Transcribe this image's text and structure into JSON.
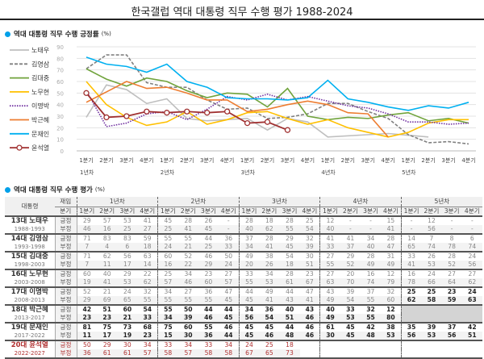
{
  "title": "한국갤럽 역대 대통령 직무 수행 평가 1988-2024",
  "chart_section": {
    "title": "역대 대통령 직무 수행 긍정률",
    "unit": "(%)"
  },
  "table_section": {
    "title": "역대 대통령 직무 수행 평가",
    "unit": "(%)"
  },
  "chart_data": {
    "type": "line",
    "ylim": [
      0,
      90
    ],
    "yticks": [
      0,
      10,
      20,
      30,
      40,
      50,
      60,
      70,
      80,
      90
    ],
    "grid": true,
    "legend": "left",
    "categories": [
      "1분기",
      "2분기",
      "3분기",
      "4분기",
      "1분기",
      "2분기",
      "3분기",
      "4분기",
      "1분기",
      "2분기",
      "3분기",
      "4분기",
      "1분기",
      "2분기",
      "3분기",
      "4분기",
      "1분기",
      "2분기",
      "3분기",
      "4분기"
    ],
    "groups": [
      "1년차",
      "2년차",
      "3년차",
      "4년차",
      "5년차"
    ],
    "series": [
      {
        "name": "노태우",
        "color": "#bfbfbf",
        "style": "solid",
        "values": [
          29,
          57,
          53,
          41,
          45,
          28,
          26,
          null,
          28,
          18,
          28,
          25,
          12,
          null,
          null,
          15,
          null,
          12,
          null,
          null
        ]
      },
      {
        "name": "김영삼",
        "color": "#808080",
        "style": "dashed",
        "values": [
          71,
          83,
          83,
          59,
          55,
          55,
          44,
          36,
          37,
          28,
          29,
          32,
          41,
          41,
          34,
          28,
          14,
          7,
          8,
          6
        ]
      },
      {
        "name": "김대중",
        "color": "#70a33c",
        "style": "solid",
        "values": [
          71,
          62,
          56,
          63,
          60,
          52,
          46,
          50,
          49,
          38,
          54,
          30,
          27,
          29,
          28,
          31,
          33,
          26,
          28,
          24
        ]
      },
      {
        "name": "노무현",
        "color": "#ffc000",
        "style": "solid",
        "values": [
          60,
          40,
          29,
          22,
          25,
          34,
          23,
          27,
          33,
          34,
          28,
          23,
          27,
          20,
          16,
          12,
          16,
          24,
          27,
          27
        ]
      },
      {
        "name": "이명박",
        "color": "#7030a0",
        "style": "dotted",
        "values": [
          52,
          21,
          24,
          32,
          34,
          27,
          36,
          47,
          44,
          49,
          44,
          47,
          43,
          39,
          37,
          32,
          25,
          25,
          23,
          24
        ]
      },
      {
        "name": "박근혜",
        "color": "#ed7d31",
        "style": "solid",
        "values": [
          42,
          51,
          60,
          54,
          55,
          50,
          44,
          44,
          34,
          36,
          40,
          43,
          40,
          33,
          32,
          12,
          null,
          null,
          null,
          null
        ]
      },
      {
        "name": "문재인",
        "color": "#00b0f0",
        "style": "solid",
        "values": [
          81,
          75,
          73,
          68,
          75,
          60,
          55,
          46,
          45,
          45,
          44,
          46,
          61,
          45,
          42,
          38,
          35,
          39,
          37,
          42
        ]
      },
      {
        "name": "윤석열",
        "color": "#a03030",
        "style": "marker",
        "values": [
          50,
          29,
          30,
          34,
          33,
          34,
          33,
          34,
          24,
          25,
          18,
          null,
          null,
          null,
          null,
          null,
          null,
          null,
          null,
          null
        ]
      }
    ]
  },
  "table": {
    "head_president": "대통령",
    "head_term": "재임",
    "head_quarter": "분기",
    "years": [
      "1년차",
      "2년차",
      "3년차",
      "4년차",
      "5년차"
    ],
    "quarters": [
      "1분기",
      "2분기",
      "3분기",
      "4분기"
    ],
    "label_pos": "긍정",
    "label_neg": "부정",
    "rows": [
      {
        "name": "13대 노태우",
        "years": "1988-1993",
        "pos": [
          "29",
          "57",
          "53",
          "41",
          "45",
          "28",
          "26",
          "-",
          "28",
          "18",
          "28",
          "25",
          "12",
          "-",
          "-",
          "15",
          "-",
          "12",
          "-",
          "-"
        ],
        "neg": [
          "46",
          "16",
          "25",
          "27",
          "25",
          "41",
          "45",
          "-",
          "40",
          "62",
          "55",
          "54",
          "40",
          "-",
          "-",
          "41",
          "-",
          "56",
          "-",
          "-"
        ]
      },
      {
        "name": "14대 김영삼",
        "years": "1993-1998",
        "pos": [
          "71",
          "83",
          "83",
          "59",
          "55",
          "55",
          "44",
          "36",
          "37",
          "28",
          "29",
          "32",
          "41",
          "41",
          "34",
          "28",
          "14",
          "7",
          "8",
          "6"
        ],
        "neg": [
          "7",
          "4",
          "6",
          "18",
          "24",
          "21",
          "25",
          "33",
          "34",
          "41",
          "45",
          "39",
          "33",
          "37",
          "40",
          "47",
          "65",
          "74",
          "78",
          "74"
        ]
      },
      {
        "name": "15대 김대중",
        "years": "1998-2003",
        "pos": [
          "71",
          "62",
          "56",
          "63",
          "60",
          "52",
          "46",
          "50",
          "49",
          "38",
          "54",
          "30",
          "27",
          "29",
          "28",
          "31",
          "33",
          "26",
          "28",
          "24"
        ],
        "neg": [
          "7",
          "11",
          "17",
          "14",
          "16",
          "22",
          "29",
          "24",
          "20",
          "26",
          "18",
          "51",
          "55",
          "52",
          "49",
          "49",
          "41",
          "53",
          "52",
          "56"
        ]
      },
      {
        "name": "16대 노무현",
        "years": "2003-2008",
        "pos": [
          "60",
          "40",
          "29",
          "22",
          "25",
          "34",
          "23",
          "27",
          "33",
          "34",
          "28",
          "23",
          "27",
          "20",
          "16",
          "12",
          "16",
          "24",
          "27",
          "27"
        ],
        "neg": [
          "19",
          "41",
          "53",
          "62",
          "57",
          "46",
          "60",
          "57",
          "55",
          "53",
          "61",
          "67",
          "63",
          "70",
          "74",
          "79",
          "78",
          "66",
          "64",
          "62"
        ]
      },
      {
        "name": "17대 이명박",
        "years": "2008-2013",
        "pos": [
          "52",
          "21",
          "24",
          "32",
          "34",
          "27",
          "36",
          "47",
          "44",
          "49",
          "44",
          "47",
          "43",
          "39",
          "37",
          "32",
          "25",
          "25",
          "23",
          "24"
        ],
        "neg": [
          "29",
          "69",
          "65",
          "55",
          "55",
          "55",
          "55",
          "45",
          "45",
          "41",
          "43",
          "41",
          "49",
          "54",
          "55",
          "60",
          "62",
          "58",
          "59",
          "63"
        ]
      },
      {
        "name": "18대 박근혜",
        "years": "2013-2017",
        "pos": [
          "42",
          "51",
          "60",
          "54",
          "55",
          "50",
          "44",
          "44",
          "34",
          "36",
          "40",
          "43",
          "40",
          "33",
          "32",
          "12",
          "",
          "",
          "",
          ""
        ],
        "neg": [
          "23",
          "23",
          "21",
          "33",
          "34",
          "39",
          "46",
          "45",
          "56",
          "54",
          "51",
          "46",
          "49",
          "53",
          "55",
          "80",
          "",
          "",
          "",
          ""
        ]
      },
      {
        "name": "19대 문재인",
        "years": "2017-2022",
        "pos": [
          "81",
          "75",
          "73",
          "68",
          "75",
          "60",
          "55",
          "46",
          "45",
          "45",
          "44",
          "46",
          "61",
          "45",
          "42",
          "38",
          "35",
          "39",
          "37",
          "42"
        ],
        "neg": [
          "11",
          "17",
          "19",
          "23",
          "15",
          "30",
          "36",
          "44",
          "45",
          "46",
          "48",
          "46",
          "30",
          "45",
          "48",
          "53",
          "56",
          "53",
          "56",
          "51"
        ]
      },
      {
        "name": "20대 윤석열",
        "years": "2022-2027",
        "pos": [
          "50",
          "29",
          "30",
          "34",
          "33",
          "34",
          "33",
          "34",
          "24",
          "25",
          "18",
          "",
          "",
          "",
          "",
          "",
          "",
          "",
          "",
          ""
        ],
        "neg": [
          "36",
          "61",
          "61",
          "57",
          "58",
          "57",
          "58",
          "58",
          "67",
          "65",
          "73",
          "",
          "",
          "",
          "",
          "",
          "",
          "",
          "",
          ""
        ]
      }
    ]
  }
}
